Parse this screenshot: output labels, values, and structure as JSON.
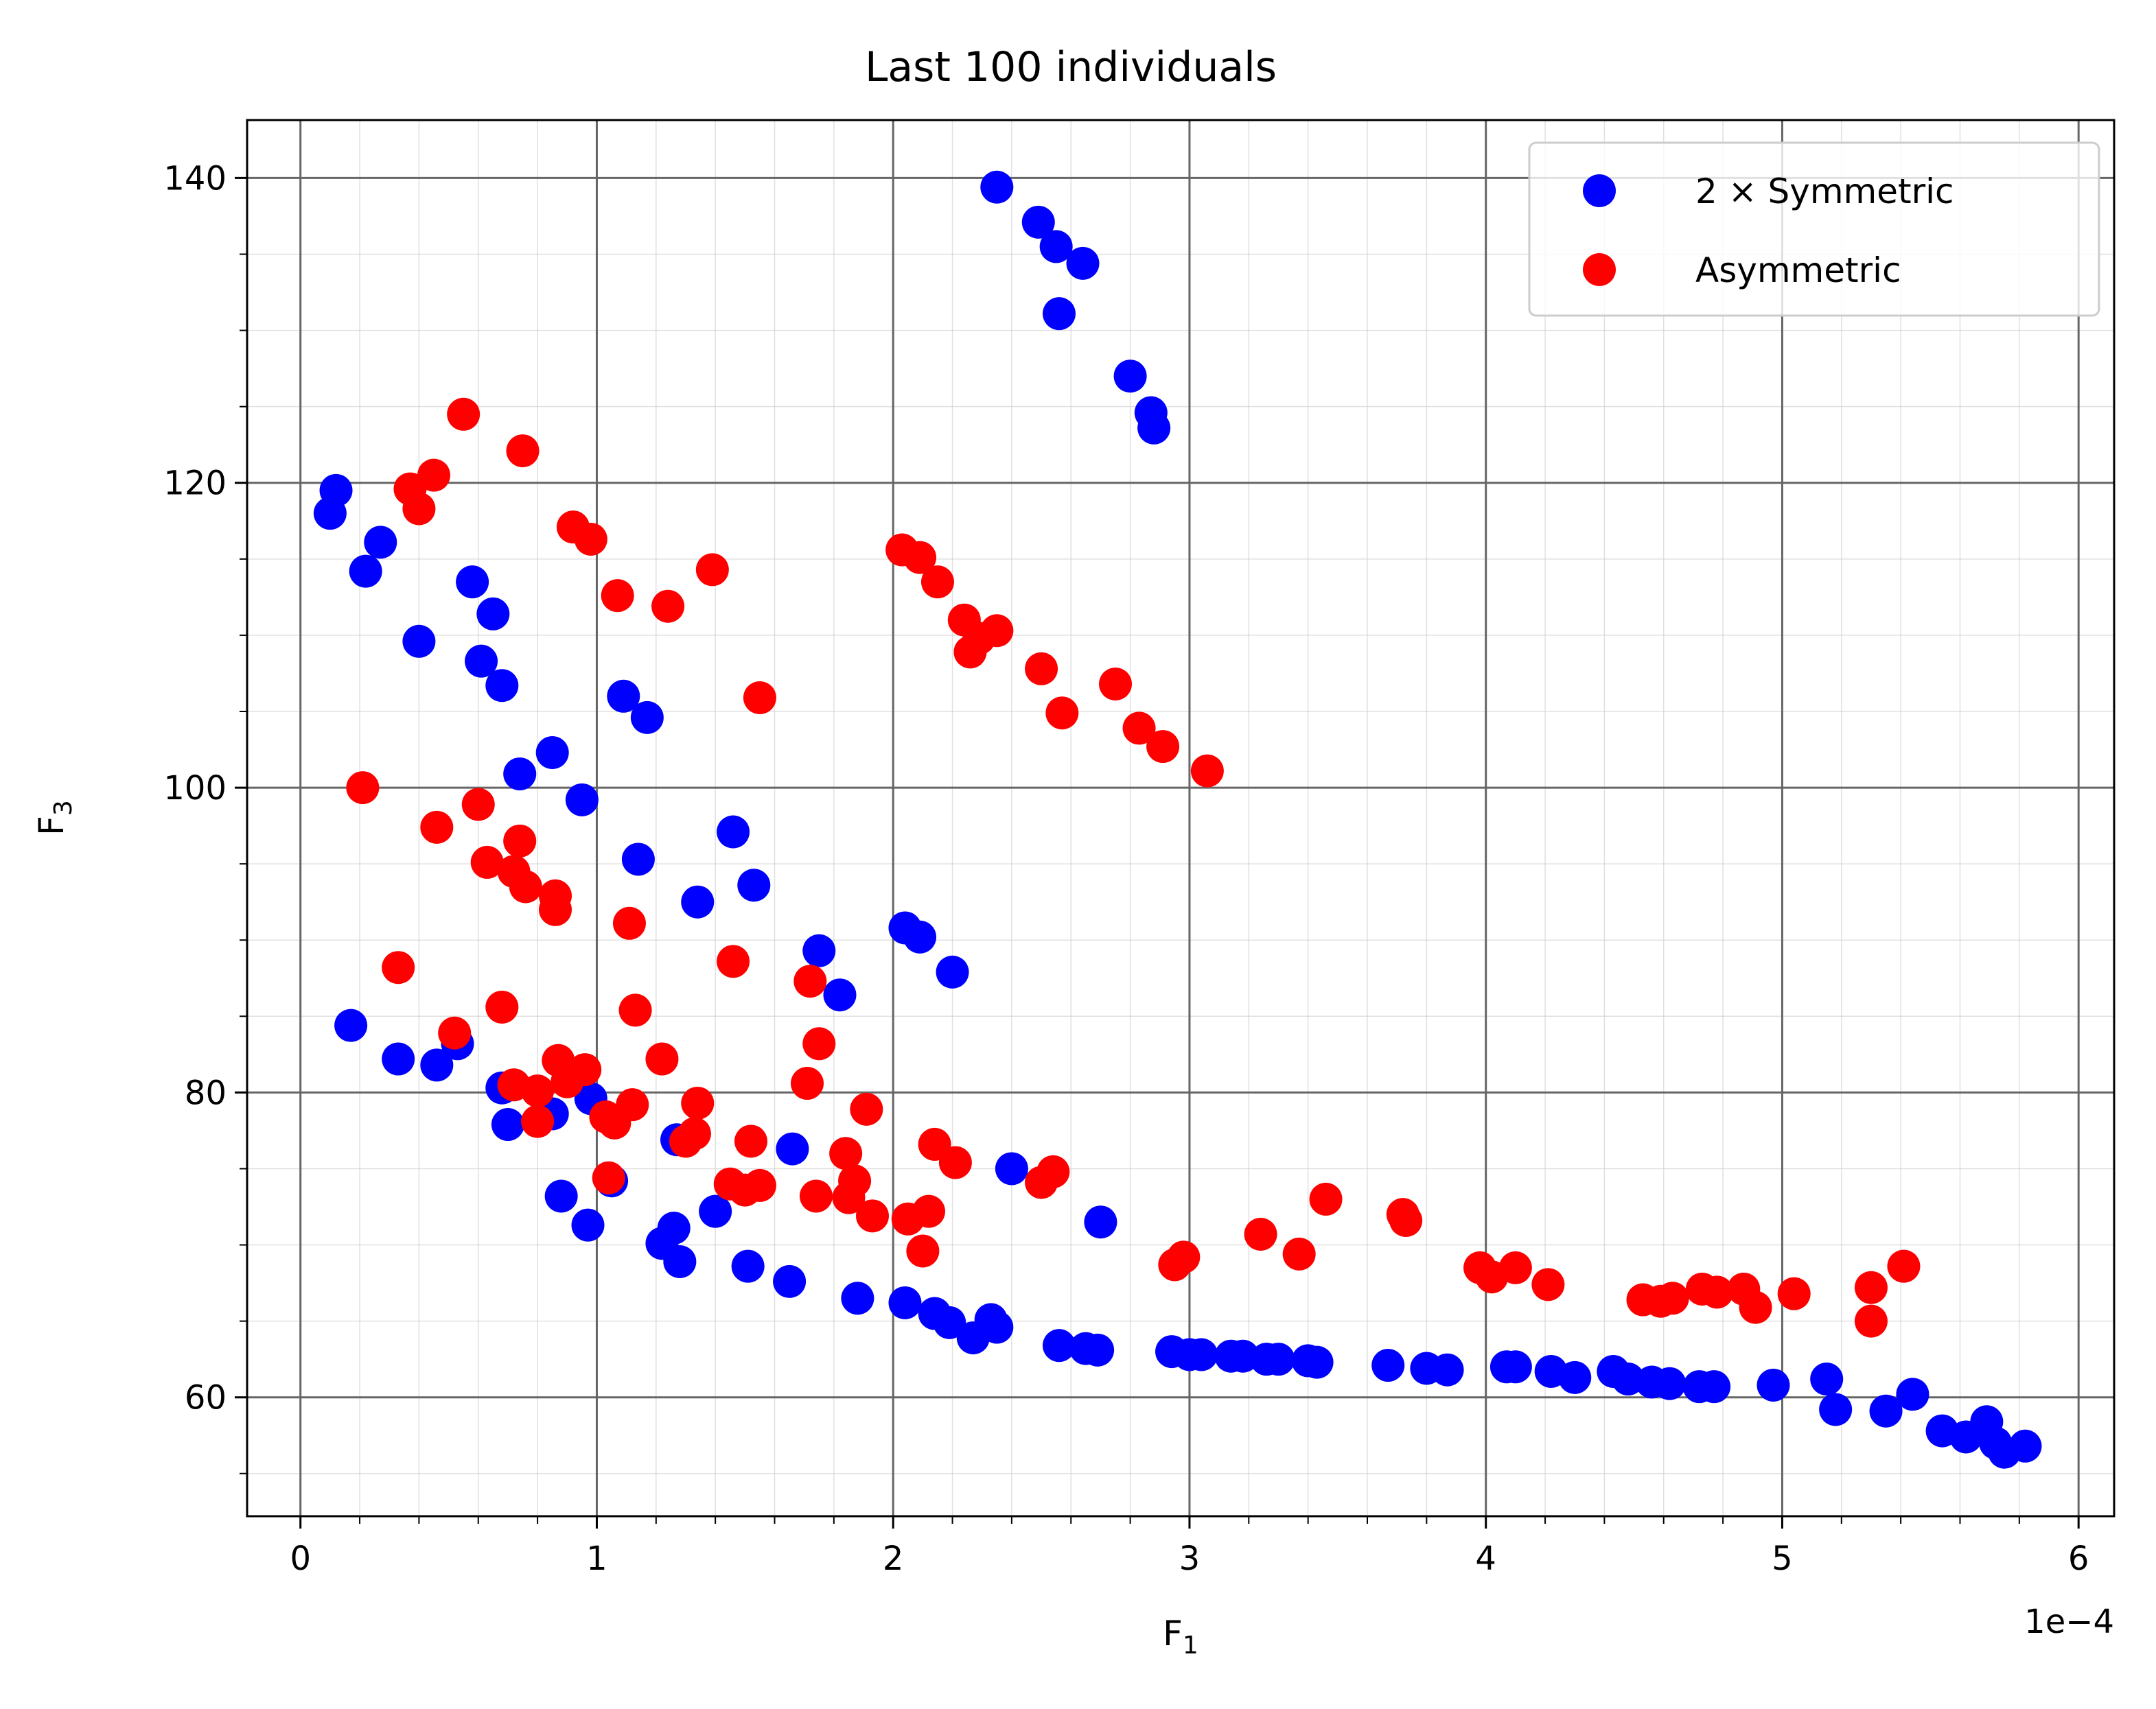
{
  "chart_data": {
    "type": "scatter",
    "title": "Last 100 individuals",
    "xlabel": "F",
    "xlabel_sub": "1",
    "ylabel": "F",
    "ylabel_sub": "3",
    "x_scale_label": "1e−4",
    "xlim": [
      -0.18,
      6.12
    ],
    "ylim": [
      52.2,
      143.8
    ],
    "x_ticks": [
      0,
      1,
      2,
      3,
      4,
      5,
      6
    ],
    "x_tick_labels": [
      "0",
      "1",
      "2",
      "3",
      "4",
      "5",
      "6"
    ],
    "y_ticks": [
      60,
      80,
      100,
      120,
      140
    ],
    "y_tick_labels": [
      "60",
      "80",
      "100",
      "120",
      "140"
    ],
    "grid": true,
    "legend_position": "top-right",
    "series": [
      {
        "name": "2 × Symmetric",
        "color": "#0000ff",
        "points": [
          [
            2.35,
            139.4
          ],
          [
            2.49,
            137.1
          ],
          [
            2.55,
            135.5
          ],
          [
            2.64,
            134.4
          ],
          [
            2.56,
            131.1
          ],
          [
            2.8,
            127.0
          ],
          [
            2.87,
            124.6
          ],
          [
            2.88,
            123.6
          ],
          [
            0.12,
            119.5
          ],
          [
            0.1,
            118.0
          ],
          [
            0.27,
            116.1
          ],
          [
            0.22,
            114.2
          ],
          [
            0.58,
            113.5
          ],
          [
            0.65,
            111.4
          ],
          [
            0.4,
            109.6
          ],
          [
            0.61,
            108.3
          ],
          [
            0.68,
            106.7
          ],
          [
            1.09,
            106.0
          ],
          [
            1.17,
            104.6
          ],
          [
            0.85,
            102.3
          ],
          [
            0.74,
            100.9
          ],
          [
            0.95,
            99.2
          ],
          [
            1.46,
            97.1
          ],
          [
            1.14,
            95.3
          ],
          [
            1.53,
            93.6
          ],
          [
            1.34,
            92.5
          ],
          [
            2.04,
            90.8
          ],
          [
            2.09,
            90.2
          ],
          [
            1.75,
            89.3
          ],
          [
            2.2,
            87.9
          ],
          [
            1.82,
            86.4
          ],
          [
            0.17,
            84.4
          ],
          [
            0.53,
            83.2
          ],
          [
            0.33,
            82.2
          ],
          [
            0.46,
            81.8
          ],
          [
            0.68,
            80.3
          ],
          [
            0.85,
            78.6
          ],
          [
            0.7,
            77.9
          ],
          [
            0.98,
            79.6
          ],
          [
            1.27,
            76.9
          ],
          [
            1.66,
            76.3
          ],
          [
            2.4,
            75.0
          ],
          [
            1.05,
            74.2
          ],
          [
            0.88,
            73.2
          ],
          [
            1.4,
            72.2
          ],
          [
            2.7,
            71.5
          ],
          [
            0.97,
            71.3
          ],
          [
            1.26,
            71.1
          ],
          [
            1.22,
            70.1
          ],
          [
            1.28,
            68.9
          ],
          [
            1.51,
            68.6
          ],
          [
            1.65,
            67.6
          ],
          [
            1.88,
            66.5
          ],
          [
            2.04,
            66.2
          ],
          [
            2.14,
            65.5
          ],
          [
            2.19,
            64.9
          ],
          [
            2.33,
            65.1
          ],
          [
            2.35,
            64.6
          ],
          [
            2.27,
            63.9
          ],
          [
            2.56,
            63.4
          ],
          [
            2.65,
            63.2
          ],
          [
            2.69,
            63.1
          ],
          [
            2.94,
            63.0
          ],
          [
            3.0,
            62.8
          ],
          [
            3.04,
            62.8
          ],
          [
            3.14,
            62.7
          ],
          [
            3.18,
            62.7
          ],
          [
            3.26,
            62.5
          ],
          [
            3.3,
            62.5
          ],
          [
            3.4,
            62.4
          ],
          [
            3.43,
            62.3
          ],
          [
            3.67,
            62.1
          ],
          [
            3.8,
            61.9
          ],
          [
            3.87,
            61.8
          ],
          [
            4.07,
            62.0
          ],
          [
            4.1,
            62.0
          ],
          [
            4.22,
            61.7
          ],
          [
            4.3,
            61.3
          ],
          [
            4.43,
            61.7
          ],
          [
            4.48,
            61.2
          ],
          [
            4.56,
            61.0
          ],
          [
            4.62,
            60.9
          ],
          [
            4.72,
            60.7
          ],
          [
            4.77,
            60.7
          ],
          [
            4.97,
            60.8
          ],
          [
            5.15,
            61.2
          ],
          [
            5.18,
            59.2
          ],
          [
            5.35,
            59.1
          ],
          [
            5.44,
            60.2
          ],
          [
            5.54,
            57.8
          ],
          [
            5.62,
            57.4
          ],
          [
            5.69,
            58.4
          ],
          [
            5.72,
            57.0
          ],
          [
            5.75,
            56.4
          ],
          [
            5.82,
            56.8
          ]
        ]
      },
      {
        "name": "Asymmetric",
        "color": "#ff0000",
        "points": [
          [
            0.55,
            124.5
          ],
          [
            0.75,
            122.1
          ],
          [
            0.45,
            120.5
          ],
          [
            0.37,
            119.6
          ],
          [
            0.4,
            118.3
          ],
          [
            0.92,
            117.1
          ],
          [
            0.98,
            116.3
          ],
          [
            1.07,
            112.6
          ],
          [
            1.24,
            111.9
          ],
          [
            1.39,
            114.3
          ],
          [
            2.03,
            115.6
          ],
          [
            2.09,
            115.1
          ],
          [
            2.15,
            113.5
          ],
          [
            2.24,
            111.0
          ],
          [
            2.35,
            110.3
          ],
          [
            2.29,
            109.8
          ],
          [
            2.26,
            108.9
          ],
          [
            2.5,
            107.8
          ],
          [
            2.75,
            106.8
          ],
          [
            2.57,
            104.9
          ],
          [
            2.83,
            103.9
          ],
          [
            2.91,
            102.7
          ],
          [
            3.06,
            101.1
          ],
          [
            1.55,
            105.9
          ],
          [
            0.21,
            100.0
          ],
          [
            0.6,
            98.9
          ],
          [
            0.46,
            97.4
          ],
          [
            0.74,
            96.5
          ],
          [
            0.63,
            95.1
          ],
          [
            0.72,
            94.5
          ],
          [
            0.76,
            93.5
          ],
          [
            0.86,
            92.9
          ],
          [
            0.86,
            92.0
          ],
          [
            1.11,
            91.1
          ],
          [
            1.46,
            88.6
          ],
          [
            1.72,
            87.3
          ],
          [
            0.33,
            88.2
          ],
          [
            0.68,
            85.6
          ],
          [
            1.13,
            85.4
          ],
          [
            1.75,
            83.2
          ],
          [
            0.52,
            83.9
          ],
          [
            1.22,
            82.2
          ],
          [
            0.87,
            82.1
          ],
          [
            0.96,
            81.5
          ],
          [
            0.9,
            80.7
          ],
          [
            0.72,
            80.5
          ],
          [
            1.71,
            80.6
          ],
          [
            0.8,
            80.1
          ],
          [
            1.34,
            79.3
          ],
          [
            1.12,
            79.2
          ],
          [
            1.03,
            78.4
          ],
          [
            1.06,
            78.0
          ],
          [
            0.8,
            78.1
          ],
          [
            1.91,
            78.9
          ],
          [
            1.33,
            77.3
          ],
          [
            1.3,
            76.8
          ],
          [
            1.52,
            76.8
          ],
          [
            2.14,
            76.6
          ],
          [
            1.84,
            76.0
          ],
          [
            2.21,
            75.4
          ],
          [
            2.54,
            74.8
          ],
          [
            2.5,
            74.1
          ],
          [
            1.04,
            74.4
          ],
          [
            1.45,
            74.0
          ],
          [
            1.5,
            73.6
          ],
          [
            1.55,
            73.9
          ],
          [
            1.74,
            73.2
          ],
          [
            1.87,
            74.2
          ],
          [
            1.85,
            73.1
          ],
          [
            3.46,
            73.0
          ],
          [
            1.93,
            71.9
          ],
          [
            2.05,
            71.7
          ],
          [
            2.12,
            72.2
          ],
          [
            3.72,
            72.0
          ],
          [
            3.73,
            71.6
          ],
          [
            2.1,
            69.6
          ],
          [
            3.24,
            70.7
          ],
          [
            3.37,
            69.4
          ],
          [
            2.95,
            68.7
          ],
          [
            2.98,
            69.2
          ],
          [
            3.98,
            68.5
          ],
          [
            4.02,
            67.9
          ],
          [
            4.1,
            68.5
          ],
          [
            4.21,
            67.4
          ],
          [
            4.53,
            66.4
          ],
          [
            4.59,
            66.3
          ],
          [
            4.63,
            66.5
          ],
          [
            4.73,
            67.1
          ],
          [
            4.78,
            66.9
          ],
          [
            4.87,
            67.1
          ],
          [
            4.91,
            65.9
          ],
          [
            5.04,
            66.8
          ],
          [
            5.3,
            67.2
          ],
          [
            5.3,
            65.0
          ],
          [
            5.41,
            68.6
          ]
        ]
      }
    ]
  }
}
